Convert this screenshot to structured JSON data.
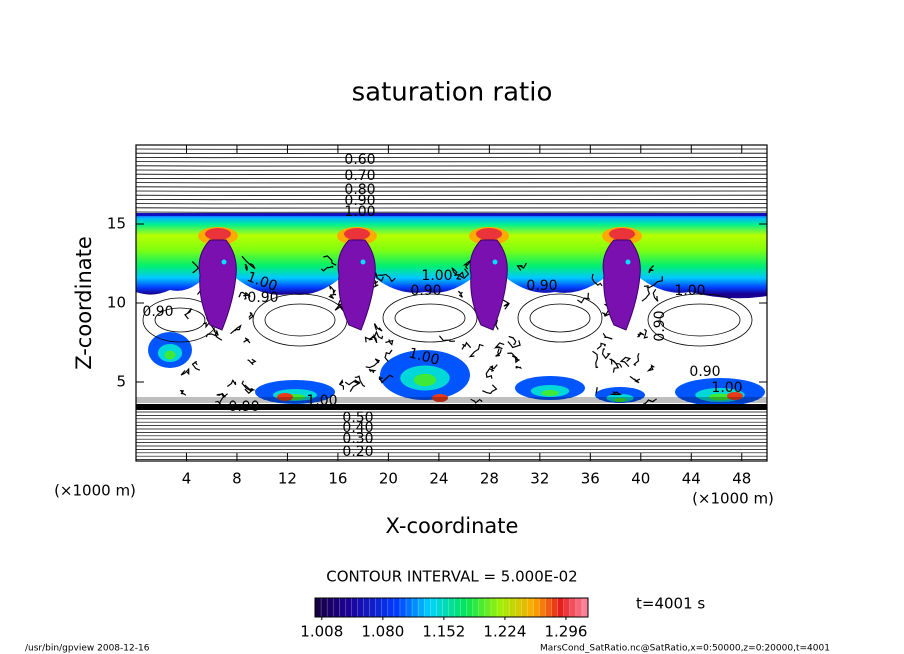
{
  "chart_data": {
    "type": "contour",
    "title": "saturation ratio",
    "xlabel": "X-coordinate",
    "ylabel": "Z-coordinate",
    "xunit": "(×1000 m)",
    "xlim": [
      0,
      50
    ],
    "ylim": [
      0,
      20
    ],
    "xticks": [
      4,
      8,
      12,
      16,
      20,
      24,
      28,
      32,
      36,
      40,
      44,
      48
    ],
    "yticks": [
      5,
      10,
      15
    ],
    "contour_labels": [
      {
        "value": 0.6,
        "label": "0.60"
      },
      {
        "value": 0.7,
        "label": "0.70"
      },
      {
        "value": 0.8,
        "label": "0.80"
      },
      {
        "value": 0.9,
        "label": "0.90"
      },
      {
        "value": 1.0,
        "label": "1.00"
      },
      {
        "value": 1.0,
        "label": "1.00"
      },
      {
        "value": 0.9,
        "label": "0.90"
      },
      {
        "value": 1.0,
        "label": "1.00"
      },
      {
        "value": 0.9,
        "label": "0.90"
      },
      {
        "value": 0.9,
        "label": "0.90"
      },
      {
        "value": 1.0,
        "label": "1.00"
      },
      {
        "value": 0.9,
        "label": "0.90"
      },
      {
        "value": 0.9,
        "label": "0.90"
      },
      {
        "value": 1.0,
        "label": "1.00"
      },
      {
        "value": 0.9,
        "label": "0.90"
      },
      {
        "value": 1.0,
        "label": "1.00"
      },
      {
        "value": 0.9,
        "label": "0.90"
      },
      {
        "value": 1.0,
        "label": "1.00"
      },
      {
        "value": 0.5,
        "label": "0.50"
      },
      {
        "value": 0.4,
        "label": "0.40"
      },
      {
        "value": 0.3,
        "label": "0.30"
      },
      {
        "value": 0.2,
        "label": "0.20"
      }
    ],
    "contour_interval_label": "CONTOUR INTERVAL = 5.000E-02",
    "colorbar": {
      "lim": [
        1.0,
        1.322
      ],
      "ticks": [
        1.008,
        {
          "value": 1.08,
          "label": "1.080"
        },
        1.152,
        1.224,
        1.296
      ]
    },
    "time_label": "t=4001 s"
  },
  "footer": {
    "left": "/usr/bin/gpview  2008-12-16",
    "right": "MarsCond_SatRatio.nc@SatRatio,x=0:50000,z=0:20000,t=4001"
  }
}
